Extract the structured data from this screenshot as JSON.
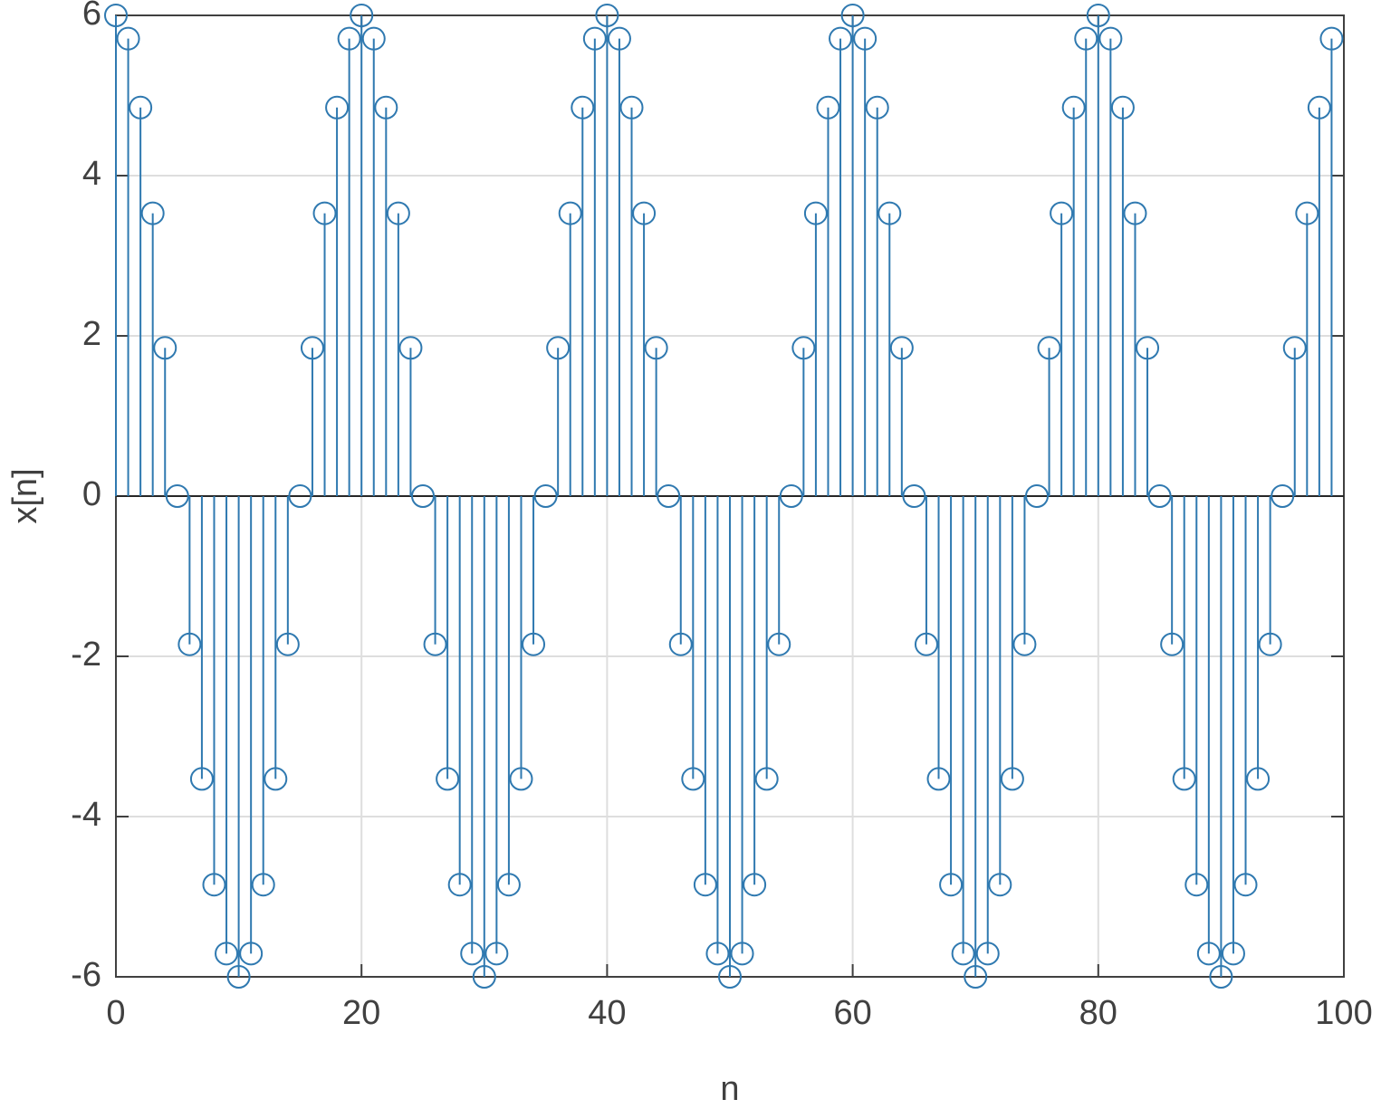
{
  "chart_data": {
    "type": "stem",
    "xlabel": "n",
    "ylabel": "x[n]",
    "x": [
      0,
      1,
      2,
      3,
      4,
      5,
      6,
      7,
      8,
      9,
      10,
      11,
      12,
      13,
      14,
      15,
      16,
      17,
      18,
      19,
      20,
      21,
      22,
      23,
      24,
      25,
      26,
      27,
      28,
      29,
      30,
      31,
      32,
      33,
      34,
      35,
      36,
      37,
      38,
      39,
      40,
      41,
      42,
      43,
      44,
      45,
      46,
      47,
      48,
      49,
      50,
      51,
      52,
      53,
      54,
      55,
      56,
      57,
      58,
      59,
      60,
      61,
      62,
      63,
      64,
      65,
      66,
      67,
      68,
      69,
      70,
      71,
      72,
      73,
      74,
      75,
      76,
      77,
      78,
      79,
      80,
      81,
      82,
      83,
      84,
      85,
      86,
      87,
      88,
      89,
      90,
      91,
      92,
      93,
      94,
      95,
      96,
      97,
      98,
      99
    ],
    "series": [
      {
        "color": "#2f79b0",
        "values": [
          6,
          5.71,
          4.85,
          3.53,
          1.85,
          0,
          -1.85,
          -3.53,
          -4.85,
          -5.71,
          -6,
          -5.71,
          -4.85,
          -3.53,
          -1.85,
          0,
          1.85,
          3.53,
          4.85,
          5.71,
          6,
          5.71,
          4.85,
          3.53,
          1.85,
          0,
          -1.85,
          -3.53,
          -4.85,
          -5.71,
          -6,
          -5.71,
          -4.85,
          -3.53,
          -1.85,
          0,
          1.85,
          3.53,
          4.85,
          5.71,
          6,
          5.71,
          4.85,
          3.53,
          1.85,
          0,
          -1.85,
          -3.53,
          -4.85,
          -5.71,
          -6,
          -5.71,
          -4.85,
          -3.53,
          -1.85,
          0,
          1.85,
          3.53,
          4.85,
          5.71,
          6,
          5.71,
          4.85,
          3.53,
          1.85,
          0,
          -1.85,
          -3.53,
          -4.85,
          -5.71,
          -6,
          -5.71,
          -4.85,
          -3.53,
          -1.85,
          0,
          1.85,
          3.53,
          4.85,
          5.71,
          6,
          5.71,
          4.85,
          3.53,
          1.85,
          0,
          -1.85,
          -3.53,
          -4.85,
          -5.71,
          -6,
          -5.71,
          -4.85,
          -3.53,
          -1.85,
          0,
          1.85,
          3.53,
          4.85,
          5.71
        ]
      }
    ],
    "xlim": [
      0,
      100
    ],
    "xticks": [
      0,
      20,
      40,
      60,
      80,
      100
    ],
    "ylim": [
      -6,
      6
    ],
    "yticks": [
      -6,
      -4,
      -2,
      0,
      2,
      4,
      6
    ],
    "grid": true
  }
}
